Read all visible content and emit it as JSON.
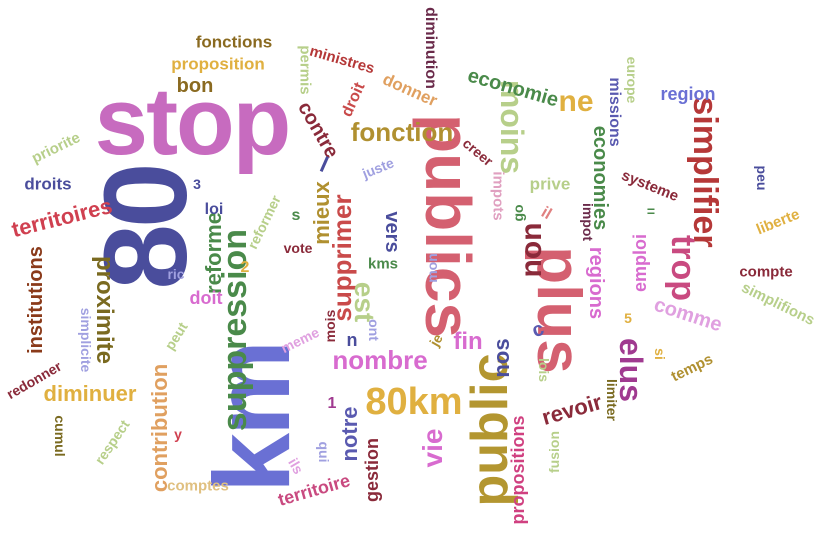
{
  "words": [
    {
      "text": "stop",
      "color": "#c76bbf"
    },
    {
      "text": "80",
      "color": "#4a4d9c"
    },
    {
      "text": "km",
      "color": "#6a70d4"
    },
    {
      "text": "publics",
      "color": "#d46070"
    },
    {
      "text": "plus",
      "color": "#d46070"
    },
    {
      "text": "public",
      "color": "#b39630"
    },
    {
      "text": "suppression",
      "color": "#4a8a4a"
    },
    {
      "text": "simplifier",
      "color": "#b53838"
    },
    {
      "text": "80km",
      "color": "#e0b040"
    },
    {
      "text": "moins",
      "color": "#b7cf8a"
    },
    {
      "text": "fonction",
      "color": "#b09030"
    },
    {
      "text": "supprimer",
      "color": "#c94a4a"
    },
    {
      "text": "nombre",
      "color": "#d86bcf"
    },
    {
      "text": "non",
      "color": "#8a2a3a"
    },
    {
      "text": "trop",
      "color": "#c94a80"
    },
    {
      "text": "ne",
      "color": "#e0b040"
    },
    {
      "text": "est",
      "color": "#b7cf8a"
    },
    {
      "text": "elus",
      "color": "#a03a90"
    },
    {
      "text": "vie",
      "color": "#d86bcf"
    },
    {
      "text": "proximite",
      "color": "#7a6a20"
    },
    {
      "text": "mieux",
      "color": "#b09030"
    },
    {
      "text": "contribution",
      "color": "#e0a060"
    },
    {
      "text": "diminuer",
      "color": "#e0b040"
    },
    {
      "text": "territoires",
      "color": "#d04050"
    },
    {
      "text": "reforme",
      "color": "#4a8a4a"
    },
    {
      "text": "institutions",
      "color": "#8a3a1a"
    },
    {
      "text": "economie",
      "color": "#4a8a4a"
    },
    {
      "text": "economies",
      "color": "#4a8a4a"
    },
    {
      "text": "regions",
      "color": "#d86bcf"
    },
    {
      "text": "emploi",
      "color": "#d86bcf"
    },
    {
      "text": "comme",
      "color": "#e0a0e0"
    },
    {
      "text": "revoir",
      "color": "#8a2a3a"
    },
    {
      "text": "fin",
      "color": "#d86bcf"
    },
    {
      "text": "notre",
      "color": "#5a5ab0"
    },
    {
      "text": "nos",
      "color": "#4a4d9c"
    },
    {
      "text": "contre",
      "color": "#8a2a3a"
    },
    {
      "text": "vers",
      "color": "#4a4d9c"
    },
    {
      "text": "propositions",
      "color": "#d04080"
    },
    {
      "text": "territoire",
      "color": "#c94a80"
    },
    {
      "text": "gestion",
      "color": "#8a2a3a"
    },
    {
      "text": "droits",
      "color": "#4a4d9c"
    },
    {
      "text": "priorite",
      "color": "#b7cf8a"
    },
    {
      "text": "fonctions",
      "color": "#8a6a20"
    },
    {
      "text": "proposition",
      "color": "#e0b040"
    },
    {
      "text": "bon",
      "color": "#8a6a20"
    },
    {
      "text": "ministres",
      "color": "#b53838"
    },
    {
      "text": "permis",
      "color": "#b7cf8a"
    },
    {
      "text": "donner",
      "color": "#e0a060"
    },
    {
      "text": "droit",
      "color": "#c94a4a"
    },
    {
      "text": "diminution",
      "color": "#6a2a4a"
    },
    {
      "text": "europe",
      "color": "#b7cf8a"
    },
    {
      "text": "missions",
      "color": "#5a5ab0"
    },
    {
      "text": "region",
      "color": "#6a70d4"
    },
    {
      "text": "peu",
      "color": "#4a4d9c"
    },
    {
      "text": "liberte",
      "color": "#e0b040"
    },
    {
      "text": "compte",
      "color": "#8a2a3a"
    },
    {
      "text": "simplifions",
      "color": "#b7cf8a"
    },
    {
      "text": "temps",
      "color": "#b09030"
    },
    {
      "text": "si",
      "color": "#e0b040"
    },
    {
      "text": "limiter",
      "color": "#7a6a20"
    },
    {
      "text": "fusion",
      "color": "#b7cf8a"
    },
    {
      "text": "lois",
      "color": "#b7cf8a"
    },
    {
      "text": "juste",
      "color": "#a0a0e0"
    },
    {
      "text": "creer",
      "color": "#8a2a3a"
    },
    {
      "text": "impots",
      "color": "#e0a0c0"
    },
    {
      "text": "prive",
      "color": "#b7cf8a"
    },
    {
      "text": "systeme",
      "color": "#8a2a3a"
    },
    {
      "text": "impot",
      "color": "#6a2a4a"
    },
    {
      "text": "go",
      "color": "#4a8a4a"
    },
    {
      "text": "il",
      "color": "#e08080"
    },
    {
      "text": "kms",
      "color": "#4a8a4a"
    },
    {
      "text": "mon",
      "color": "#a0a0e0"
    },
    {
      "text": "vote",
      "color": "#8a2a3a"
    },
    {
      "text": "reformer",
      "color": "#b7cf8a"
    },
    {
      "text": "loi",
      "color": "#4a4d9c"
    },
    {
      "text": "doit",
      "color": "#d86bcf"
    },
    {
      "text": "ric",
      "color": "#a0a0e0"
    },
    {
      "text": "simplicite",
      "color": "#a0a0e0"
    },
    {
      "text": "peut",
      "color": "#b7cf8a"
    },
    {
      "text": "meme",
      "color": "#e0a0e0"
    },
    {
      "text": "redonner",
      "color": "#8a2a3a"
    },
    {
      "text": "cumul",
      "color": "#7a6a20"
    },
    {
      "text": "respect",
      "color": "#b7cf8a"
    },
    {
      "text": "comptes",
      "color": "#e0c080"
    },
    {
      "text": "ils",
      "color": "#e0a0e0"
    },
    {
      "text": "qui",
      "color": "#a0a0e0"
    },
    {
      "text": "je",
      "color": "#b09030"
    },
    {
      "text": "mois",
      "color": "#8a2a3a"
    },
    {
      "text": "ont",
      "color": "#a0a0e0"
    },
    {
      "text": "n",
      "color": "#4a4d9c"
    },
    {
      "text": "y",
      "color": "#d04050"
    },
    {
      "text": "1",
      "color": "#a03a90"
    },
    {
      "text": "2",
      "color": "#e0b040"
    },
    {
      "text": "3",
      "color": "#4a4d9c"
    },
    {
      "text": "5",
      "color": "#e0b040"
    },
    {
      "text": "s",
      "color": "#4a8a4a"
    },
    {
      "text": "c",
      "color": "#5a5ab0"
    },
    {
      "text": "l",
      "color": "#4a4d9c"
    },
    {
      "text": "=",
      "color": "#4a8a4a"
    }
  ]
}
